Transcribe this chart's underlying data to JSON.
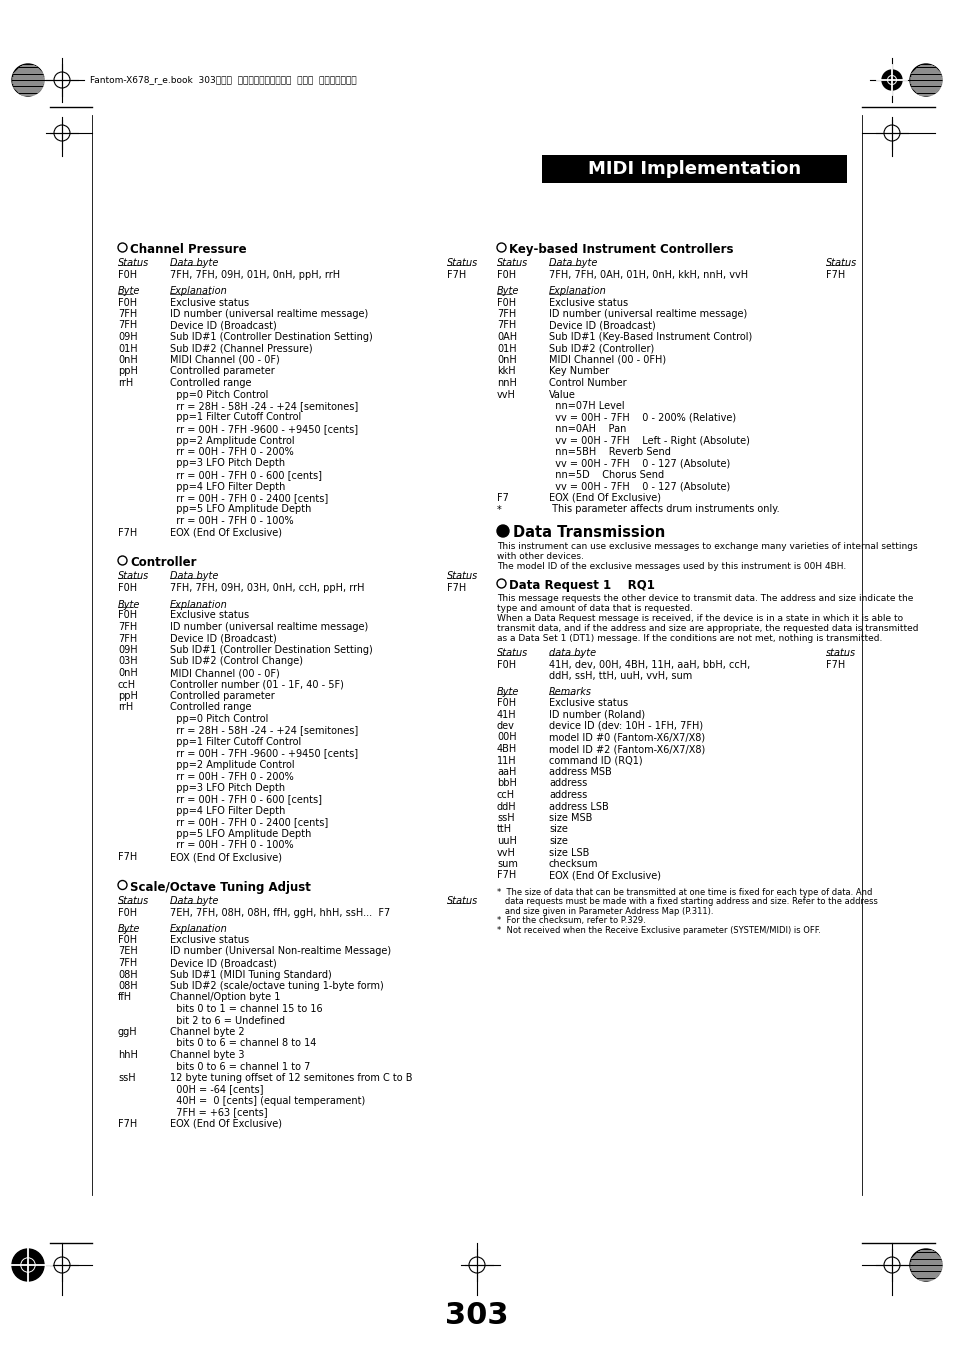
{
  "page_bg": "#ffffff",
  "page_number": "303",
  "header_text": "Fantom-X678_r_e.book  303ページ  ２００５年５月１２日  木曜日  午後４時４０分",
  "title_box_text": "MIDI Implementation",
  "left_sections": [
    {
      "circle_title": true,
      "title": "Channel Pressure",
      "status_label": "Status",
      "data_byte_label": "Data byte",
      "status_label2": "Status",
      "status_val": "F0H",
      "data_byte_val": "7FH, 7FH, 09H, 01H, 0nH, ppH, rrH",
      "status_val2": "F7H",
      "byte_col_label": "Byte",
      "exp_col_label": "Explanation",
      "rows": [
        [
          "F0H",
          "Exclusive status"
        ],
        [
          "7FH",
          "ID number (universal realtime message)"
        ],
        [
          "7FH",
          "Device ID (Broadcast)"
        ],
        [
          "09H",
          "Sub ID#1 (Controller Destination Setting)"
        ],
        [
          "01H",
          "Sub ID#2 (Channel Pressure)"
        ],
        [
          "0nH",
          "MIDI Channel (00 - 0F)"
        ],
        [
          "ppH",
          "Controlled parameter"
        ],
        [
          "rrH",
          "Controlled range"
        ],
        [
          "",
          "  pp=0 Pitch Control"
        ],
        [
          "",
          "  rr = 28H - 58H -24 - +24 [semitones]"
        ],
        [
          "",
          "  pp=1 Filter Cutoff Control"
        ],
        [
          "",
          "  rr = 00H - 7FH -9600 - +9450 [cents]"
        ],
        [
          "",
          "  pp=2 Amplitude Control"
        ],
        [
          "",
          "  rr = 00H - 7FH 0 - 200%"
        ],
        [
          "",
          "  pp=3 LFO Pitch Depth"
        ],
        [
          "",
          "  rr = 00H - 7FH 0 - 600 [cents]"
        ],
        [
          "",
          "  pp=4 LFO Filter Depth"
        ],
        [
          "",
          "  rr = 00H - 7FH 0 - 2400 [cents]"
        ],
        [
          "",
          "  pp=5 LFO Amplitude Depth"
        ],
        [
          "",
          "  rr = 00H - 7FH 0 - 100%"
        ],
        [
          "F7H",
          "EOX (End Of Exclusive)"
        ]
      ]
    },
    {
      "circle_title": true,
      "title": "Controller",
      "status_label": "Status",
      "data_byte_label": "Data byte",
      "status_label2": "Status",
      "status_val": "F0H",
      "data_byte_val": "7FH, 7FH, 09H, 03H, 0nH, ccH, ppH, rrH",
      "status_val2": "F7H",
      "byte_col_label": "Byte",
      "exp_col_label": "Explanation",
      "rows": [
        [
          "F0H",
          "Exclusive status"
        ],
        [
          "7FH",
          "ID number (universal realtime message)"
        ],
        [
          "7FH",
          "Device ID (Broadcast)"
        ],
        [
          "09H",
          "Sub ID#1 (Controller Destination Setting)"
        ],
        [
          "03H",
          "Sub ID#2 (Control Change)"
        ],
        [
          "0nH",
          "MIDI Channel (00 - 0F)"
        ],
        [
          "ccH",
          "Controller number (01 - 1F, 40 - 5F)"
        ],
        [
          "ppH",
          "Controlled parameter"
        ],
        [
          "rrH",
          "Controlled range"
        ],
        [
          "",
          "  pp=0 Pitch Control"
        ],
        [
          "",
          "  rr = 28H - 58H -24 - +24 [semitones]"
        ],
        [
          "",
          "  pp=1 Filter Cutoff Control"
        ],
        [
          "",
          "  rr = 00H - 7FH -9600 - +9450 [cents]"
        ],
        [
          "",
          "  pp=2 Amplitude Control"
        ],
        [
          "",
          "  rr = 00H - 7FH 0 - 200%"
        ],
        [
          "",
          "  pp=3 LFO Pitch Depth"
        ],
        [
          "",
          "  rr = 00H - 7FH 0 - 600 [cents]"
        ],
        [
          "",
          "  pp=4 LFO Filter Depth"
        ],
        [
          "",
          "  rr = 00H - 7FH 0 - 2400 [cents]"
        ],
        [
          "",
          "  pp=5 LFO Amplitude Depth"
        ],
        [
          "",
          "  rr = 00H - 7FH 0 - 100%"
        ],
        [
          "F7H",
          "EOX (End Of Exclusive)"
        ]
      ]
    },
    {
      "circle_title": true,
      "title": "Scale/Octave Tuning Adjust",
      "status_label": "Status",
      "data_byte_label": "Data byte",
      "status_label2": "Status",
      "status_val": "F0H",
      "data_byte_val": "7EH, 7FH, 08H, 08H, ffH, ggH, hhH, ssH...  F7",
      "status_val2": "",
      "byte_col_label": "Byte",
      "exp_col_label": "Explanation",
      "rows": [
        [
          "F0H",
          "Exclusive status"
        ],
        [
          "7EH",
          "ID number (Universal Non-realtime Message)"
        ],
        [
          "7FH",
          "Device ID (Broadcast)"
        ],
        [
          "08H",
          "Sub ID#1 (MIDI Tuning Standard)"
        ],
        [
          "08H",
          "Sub ID#2 (scale/octave tuning 1-byte form)"
        ],
        [
          "ffH",
          "Channel/Option byte 1"
        ],
        [
          "",
          "  bits 0 to 1 = channel 15 to 16"
        ],
        [
          "",
          "  bit 2 to 6 = Undefined"
        ],
        [
          "ggH",
          "Channel byte 2"
        ],
        [
          "",
          "  bits 0 to 6 = channel 8 to 14"
        ],
        [
          "hhH",
          "Channel byte 3"
        ],
        [
          "",
          "  bits 0 to 6 = channel 1 to 7"
        ],
        [
          "ssH",
          "12 byte tuning offset of 12 semitones from C to B"
        ],
        [
          "",
          "  00H = -64 [cents]"
        ],
        [
          "",
          "  40H =  0 [cents] (equal temperament)"
        ],
        [
          "",
          "  7FH = +63 [cents]"
        ],
        [
          "F7H",
          "EOX (End Of Exclusive)"
        ]
      ]
    }
  ],
  "right_sections": [
    {
      "circle_title": true,
      "title": "Key-based Instrument Controllers",
      "status_label": "Status",
      "data_byte_label": "Data byte",
      "status_label2": "Status",
      "status_val": "F0H",
      "data_byte_val": "7FH, 7FH, 0AH, 01H, 0nH, kkH, nnH, vvH",
      "status_val2": "F7H",
      "byte_col_label": "Byte",
      "exp_col_label": "Explanation",
      "rows": [
        [
          "F0H",
          "Exclusive status"
        ],
        [
          "7FH",
          "ID number (universal realtime message)"
        ],
        [
          "7FH",
          "Device ID (Broadcast)"
        ],
        [
          "0AH",
          "Sub ID#1 (Key-Based Instrument Control)"
        ],
        [
          "01H",
          "Sub ID#2 (Controller)"
        ],
        [
          "0nH",
          "MIDI Channel (00 - 0FH)"
        ],
        [
          "kkH",
          "Key Number"
        ],
        [
          "nnH",
          "Control Number"
        ],
        [
          "vvH",
          "Value"
        ],
        [
          "",
          "  nn=07H Level"
        ],
        [
          "",
          "  vv = 00H - 7FH    0 - 200% (Relative)"
        ],
        [
          "",
          "  nn=0AH    Pan"
        ],
        [
          "",
          "  vv = 00H - 7FH    Left - Right (Absolute)"
        ],
        [
          "",
          "  nn=5BH    Reverb Send"
        ],
        [
          "",
          "  vv = 00H - 7FH    0 - 127 (Absolute)"
        ],
        [
          "",
          "  nn=5D    Chorus Send"
        ],
        [
          "",
          "  vv = 00H - 7FH    0 - 127 (Absolute)"
        ],
        [
          "F7",
          "EOX (End Of Exclusive)"
        ],
        [
          "*",
          " This parameter affects drum instruments only."
        ]
      ]
    }
  ],
  "data_transmission": {
    "bullet_title": "Data Transmission",
    "subtitle_lines": [
      "This instrument can use exclusive messages to exchange many varieties of internal settings",
      "with other devices.",
      "The model ID of the exclusive messages used by this instrument is 00H 4BH."
    ],
    "rq1_title": "Data Request 1    RQ1",
    "rq1_desc_lines": [
      "This message requests the other device to transmit data. The address and size indicate the",
      "type and amount of data that is requested.",
      "When a Data Request message is received, if the device is in a state in which it is able to",
      "transmit data, and if the address and size are appropriate, the requested data is transmitted",
      "as a Data Set 1 (DT1) message. If the conditions are not met, nothing is transmitted."
    ],
    "status_label": "Status",
    "data_byte_label": "data byte",
    "status_label2": "status",
    "status_val": "F0H",
    "data_byte_val": "41H, dev, 00H, 4BH, 11H, aaH, bbH, ccH,",
    "data_byte_val2": "ddH, ssH, ttH, uuH, vvH, sum",
    "status_val2": "F7H",
    "byte_col_label": "Byte",
    "remarks_col_label": "Remarks",
    "rows": [
      [
        "F0H",
        "Exclusive status"
      ],
      [
        "41H",
        "ID number (Roland)"
      ],
      [
        "dev",
        "device ID (dev: 10H - 1FH, 7FH)"
      ],
      [
        "00H",
        "model ID #0 (Fantom-X6/X7/X8)"
      ],
      [
        "4BH",
        "model ID #2 (Fantom-X6/X7/X8)"
      ],
      [
        "11H",
        "command ID (RQ1)"
      ],
      [
        "aaH",
        "address MSB"
      ],
      [
        "bbH",
        "address"
      ],
      [
        "ccH",
        "address"
      ],
      [
        "ddH",
        "address LSB"
      ],
      [
        "ssH",
        "size MSB"
      ],
      [
        "ttH",
        "size"
      ],
      [
        "uuH",
        "size"
      ],
      [
        "vvH",
        "size LSB"
      ],
      [
        "sum",
        "checksum"
      ],
      [
        "F7H",
        "EOX (End Of Exclusive)"
      ]
    ],
    "footnotes": [
      "*  The size of data that can be transmitted at one time is fixed for each type of data. And",
      "   data requests must be made with a fixed starting address and size. Refer to the address",
      "   and size given in Parameter Address Map (P.311).",
      "*  For the checksum, refer to P.329.",
      "*  Not received when the Receive Exclusive parameter (SYSTEM/MIDI) is OFF."
    ]
  }
}
